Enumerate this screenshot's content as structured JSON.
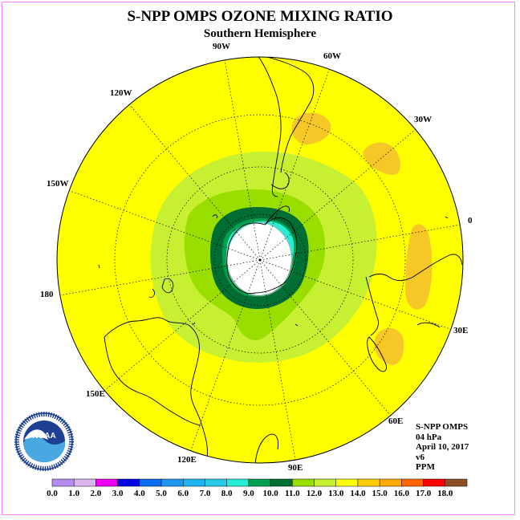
{
  "title": "S-NPP OMPS OZONE MIXING RATIO",
  "subtitle": "Southern Hemisphere",
  "longitude_labels": [
    {
      "id": "lon-90w",
      "text": "90W"
    },
    {
      "id": "lon-60w",
      "text": "60W"
    },
    {
      "id": "lon-30w",
      "text": "30W"
    },
    {
      "id": "lon-0",
      "text": "0"
    },
    {
      "id": "lon-30e",
      "text": "30E"
    },
    {
      "id": "lon-60e",
      "text": "60E"
    },
    {
      "id": "lon-90e",
      "text": "90E"
    },
    {
      "id": "lon-120e",
      "text": "120E"
    },
    {
      "id": "lon-150e",
      "text": "150E"
    },
    {
      "id": "lon-180",
      "text": "180"
    },
    {
      "id": "lon-150w",
      "text": "150W"
    },
    {
      "id": "lon-120w",
      "text": "120W"
    }
  ],
  "info": {
    "instrument": "S-NPP OMPS",
    "level": "04 hPa",
    "date": "April 10, 2017",
    "version": "v6",
    "units": "PPM"
  },
  "logo": {
    "text": "NOAA",
    "ring_text": "NATIONAL OCEANIC AND ATMOSPHERIC ADMINISTRATION U.S. DEPARTMENT OF COMMERCE"
  },
  "colorbar": {
    "labels": [
      "0.0",
      "1.0",
      "2.0",
      "3.0",
      "4.0",
      "5.0",
      "6.0",
      "7.0",
      "8.0",
      "9.0",
      "10.0",
      "11.0",
      "12.0",
      "13.0",
      "14.0",
      "15.0",
      "16.0",
      "17.0",
      "18.0"
    ],
    "colors": [
      "#b48cf0",
      "#dcb4f0",
      "#f000f0",
      "#0000e6",
      "#0a6ef0",
      "#1e96f0",
      "#1eb4f0",
      "#28c8e6",
      "#28ecd4",
      "#00a050",
      "#006e32",
      "#9ade00",
      "#c8f032",
      "#ffff00",
      "#ffcc00",
      "#ffaa00",
      "#ff6400",
      "#ff0000",
      "#8c5028"
    ]
  },
  "map_colors": {
    "background": "#ffff00",
    "orange": "#f5c828",
    "light_green": "#c8f032",
    "mid_green": "#9ade00",
    "dark_green": "#006e32",
    "green": "#00a050",
    "cyan": "#28ecd4",
    "pole": "#ffffff"
  }
}
